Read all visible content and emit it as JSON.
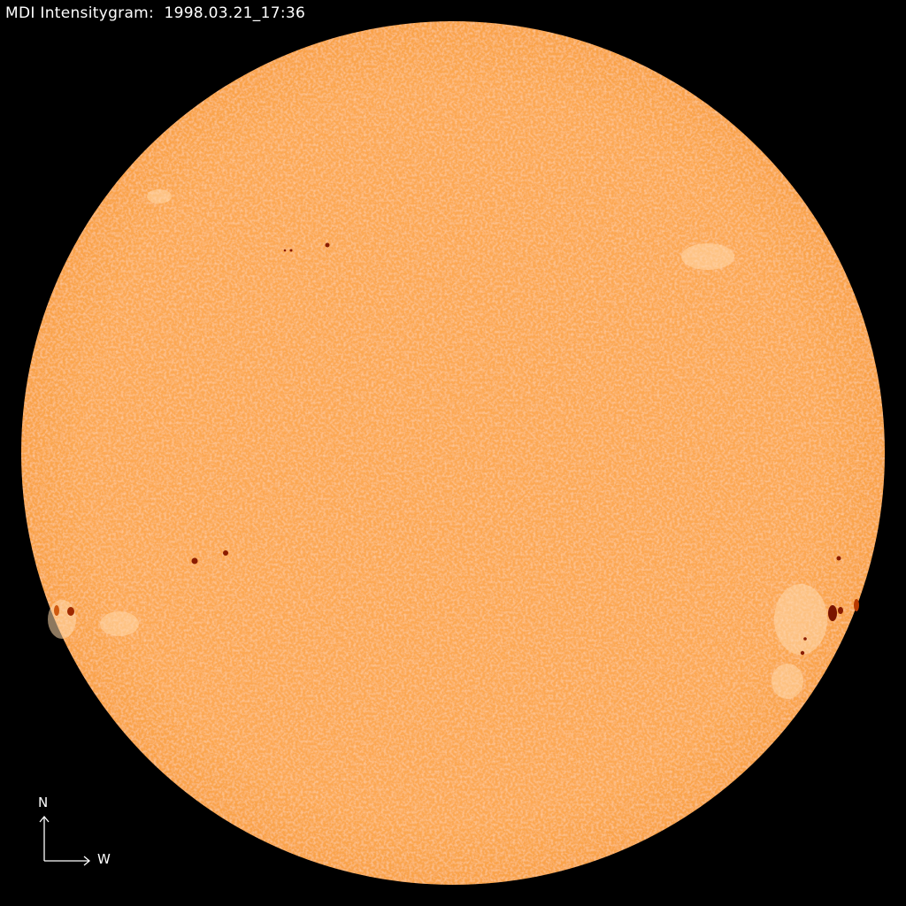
{
  "title": "MDI Intensitygram:  1998.03.21_17:36",
  "compass": {
    "north_label": "N",
    "west_label": "W"
  },
  "colors": {
    "background": "#000000",
    "disk": "#fca852",
    "sunspot": "#8a1c00",
    "text": "#ffffff"
  }
}
